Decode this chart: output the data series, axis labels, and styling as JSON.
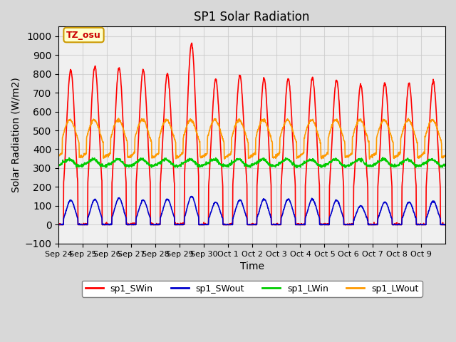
{
  "title": "SP1 Solar Radiation",
  "xlabel": "Time",
  "ylabel": "Solar Radiation (W/m2)",
  "ylim": [
    -100,
    1050
  ],
  "yticks": [
    -100,
    0,
    100,
    200,
    300,
    400,
    500,
    600,
    700,
    800,
    900,
    1000
  ],
  "xtick_labels": [
    "Sep 24",
    "Sep 25",
    "Sep 26",
    "Sep 27",
    "Sep 28",
    "Sep 29",
    "Sep 30",
    "Oct 1",
    "Oct 2",
    "Oct 3",
    "Oct 4",
    "Oct 5",
    "Oct 6",
    "Oct 7",
    "Oct 8",
    "Oct 9"
  ],
  "annotation_text": "TZ_osu",
  "annotation_color": "#cc0000",
  "annotation_bg": "#ffffcc",
  "annotation_border": "#cc9900",
  "colors": {
    "sp1_SWin": "#ff0000",
    "sp1_SWout": "#0000cc",
    "sp1_LWin": "#00cc00",
    "sp1_LWout": "#ff9900"
  },
  "legend_labels": [
    "sp1_SWin",
    "sp1_SWout",
    "sp1_LWin",
    "sp1_LWout"
  ],
  "grid_color": "#cccccc",
  "plot_bg": "#f0f0f0",
  "fig_bg": "#d8d8d8",
  "sw_peaks": [
    820,
    840,
    830,
    820,
    800,
    960,
    770,
    790,
    775,
    775,
    780,
    770,
    740,
    750,
    750,
    760
  ],
  "swout_peaks": [
    130,
    135,
    140,
    130,
    135,
    150,
    120,
    130,
    135,
    135,
    135,
    130,
    100,
    120,
    120,
    125
  ],
  "lwin_base": 320,
  "lwout_base": 370
}
